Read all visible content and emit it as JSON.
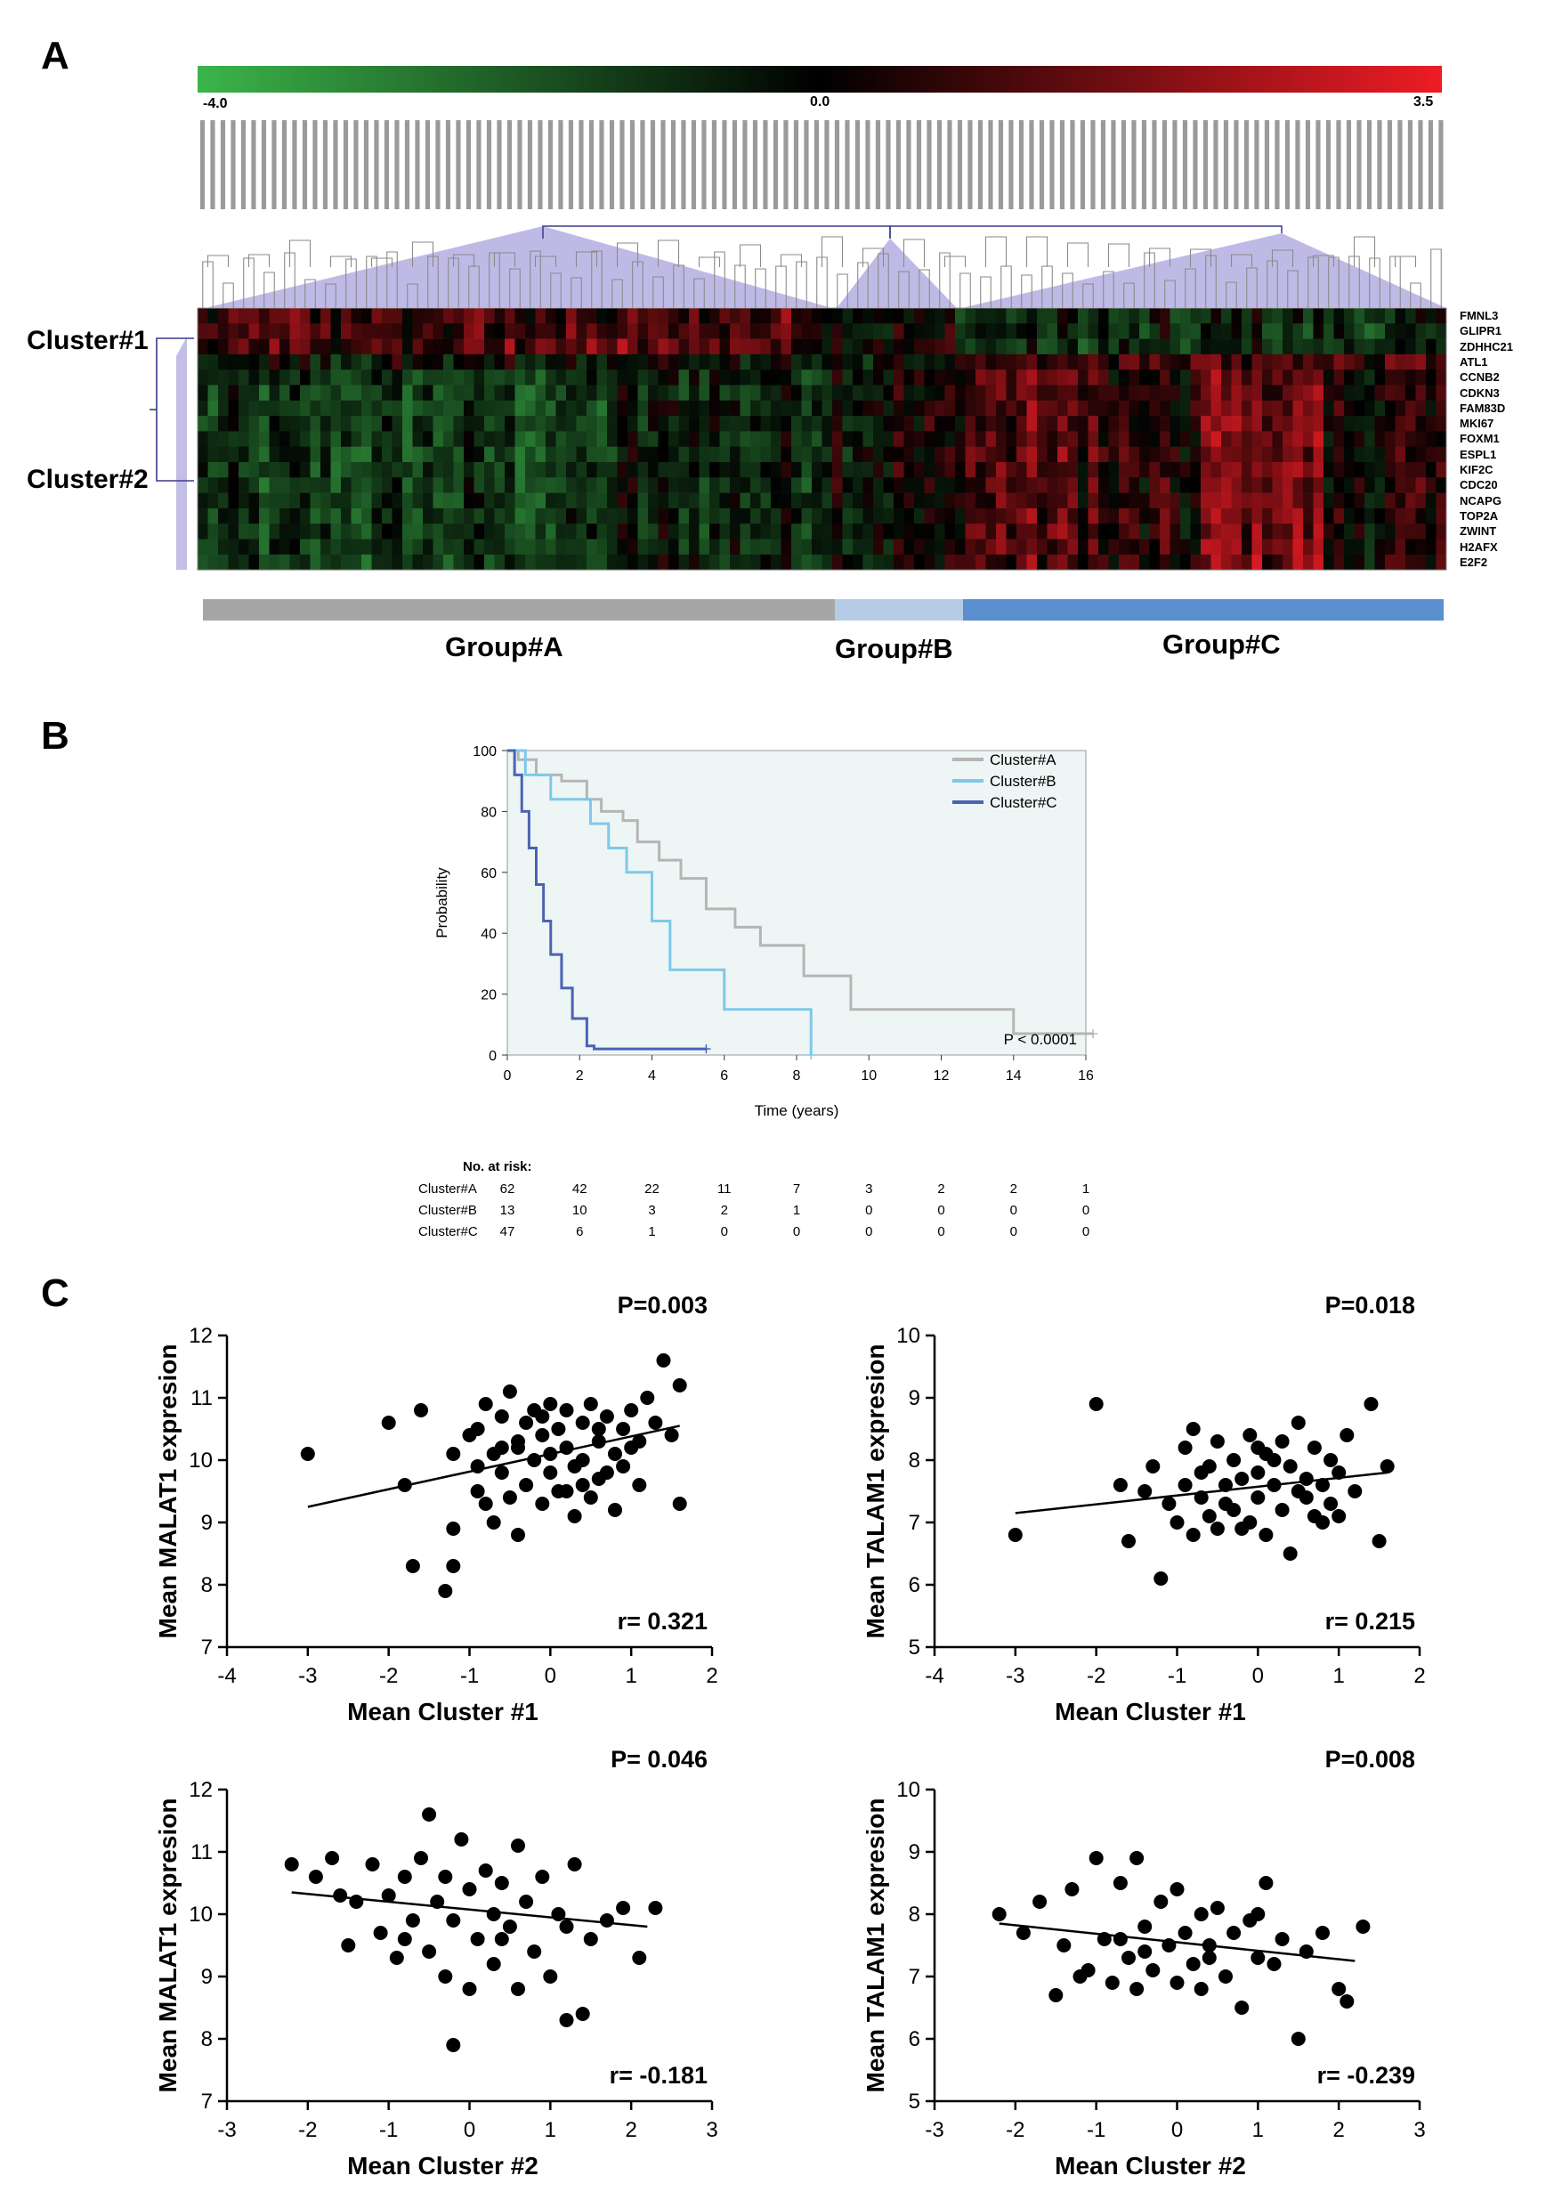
{
  "panels": {
    "a": "A",
    "b": "B",
    "c": "C"
  },
  "heatmap": {
    "color_min": "#3bb54a",
    "color_mid": "#000000",
    "color_max": "#ee1c25",
    "scale_min_label": "-4.0",
    "scale_mid_label": "0.0",
    "scale_max_label": "3.5",
    "sample_count": 122,
    "genes": [
      "FMNL3",
      "GLIPR1",
      "ZDHHC21",
      "ATL1",
      "CCNB2",
      "CDKN3",
      "FAM83D",
      "MKI67",
      "FOXM1",
      "ESPL1",
      "KIF2C",
      "CDC20",
      "NCAPG",
      "TOP2A",
      "ZWINT",
      "H2AFX",
      "E2F2"
    ],
    "cluster1_label": "Cluster#1",
    "cluster2_label": "Cluster#2",
    "groups": [
      {
        "label": "Group#A",
        "color": "#a6a6a6"
      },
      {
        "label": "Group#B",
        "color": "#b6cbe6"
      },
      {
        "label": "Group#C",
        "color": "#5b8fcf"
      }
    ]
  },
  "km": {
    "xlabel": "Time (years)",
    "ylabel": "Probability",
    "x_ticks": [
      "0",
      "2",
      "4",
      "6",
      "8",
      "10",
      "12",
      "14",
      "16"
    ],
    "y_ticks": [
      "0",
      "20",
      "40",
      "60",
      "80",
      "100"
    ],
    "pvalue": "P < 0.0001",
    "legend": [
      {
        "name": "Cluster#A",
        "color": "#b5b5b5"
      },
      {
        "name": "Cluster#B",
        "color": "#7ec8ea"
      },
      {
        "name": "Cluster#C",
        "color": "#4a64b3"
      }
    ],
    "risk_title": "No. at risk:",
    "risk_rows": [
      {
        "name": "Cluster#A",
        "values": [
          "62",
          "42",
          "22",
          "11",
          "7",
          "3",
          "2",
          "2",
          "1"
        ]
      },
      {
        "name": "Cluster#B",
        "values": [
          "13",
          "10",
          "3",
          "2",
          "1",
          "0",
          "0",
          "0",
          "0"
        ]
      },
      {
        "name": "Cluster#C",
        "values": [
          "47",
          "6",
          "1",
          "0",
          "0",
          "0",
          "0",
          "0",
          "0"
        ]
      }
    ]
  },
  "chart_data": [
    {
      "type": "line",
      "xlabel": "Time (years)",
      "ylabel": "Probability",
      "xlim": [
        0,
        16
      ],
      "ylim": [
        0,
        100
      ],
      "legend_position": "top-right",
      "series": [
        {
          "name": "Cluster#A",
          "x": [
            0,
            0.3,
            0.8,
            1.5,
            2.2,
            2.6,
            3.2,
            3.6,
            4.2,
            4.8,
            5.5,
            6.3,
            7.0,
            8.2,
            9.5,
            12.0,
            14.0,
            16.2
          ],
          "y": [
            100,
            97,
            92,
            90,
            84,
            80,
            77,
            70,
            64,
            58,
            48,
            42,
            36,
            26,
            15,
            15,
            7,
            7
          ]
        },
        {
          "name": "Cluster#B",
          "x": [
            0,
            0.5,
            1.2,
            2.3,
            2.8,
            3.3,
            4.0,
            4.5,
            6.0,
            8.4
          ],
          "y": [
            100,
            92,
            84,
            76,
            68,
            60,
            44,
            28,
            15,
            0
          ]
        },
        {
          "name": "Cluster#C",
          "x": [
            0,
            0.2,
            0.4,
            0.6,
            0.8,
            1.0,
            1.2,
            1.5,
            1.8,
            2.2,
            2.4,
            5.5
          ],
          "y": [
            100,
            92,
            80,
            68,
            56,
            44,
            33,
            22,
            12,
            3,
            2,
            2
          ]
        }
      ]
    },
    {
      "type": "scatter",
      "title": "P=0.003",
      "annotation": "r= 0.321",
      "xlabel": "Mean Cluster #1",
      "ylabel": "Mean MALAT1 expresion",
      "xlim": [
        -4,
        2
      ],
      "ylim": [
        7,
        12
      ],
      "x_ticks": [
        "-4",
        "-3",
        "-2",
        "-1",
        "0",
        "1",
        "2"
      ],
      "y_ticks": [
        "7",
        "8",
        "9",
        "10",
        "11",
        "12"
      ],
      "fit": {
        "x": [
          -3.0,
          1.6
        ],
        "y": [
          9.25,
          10.55
        ]
      },
      "points": [
        [
          -3,
          10.1
        ],
        [
          -2.0,
          10.6
        ],
        [
          -1.8,
          9.6
        ],
        [
          -1.6,
          10.8
        ],
        [
          -1.7,
          8.3
        ],
        [
          -1.3,
          7.9
        ],
        [
          -1.2,
          8.9
        ],
        [
          -1.2,
          8.3
        ],
        [
          -1.2,
          10.1
        ],
        [
          -1.0,
          10.4
        ],
        [
          -0.9,
          9.5
        ],
        [
          -0.9,
          10.5
        ],
        [
          -0.8,
          9.3
        ],
        [
          -0.8,
          10.9
        ],
        [
          -0.7,
          10.1
        ],
        [
          -0.7,
          9.0
        ],
        [
          -0.6,
          10.7
        ],
        [
          -0.6,
          9.8
        ],
        [
          -0.5,
          11.1
        ],
        [
          -0.5,
          9.4
        ],
        [
          -0.4,
          10.2
        ],
        [
          -0.4,
          8.8
        ],
        [
          -0.3,
          10.6
        ],
        [
          -0.3,
          9.6
        ],
        [
          -0.2,
          10.0
        ],
        [
          -0.2,
          10.8
        ],
        [
          -0.1,
          9.3
        ],
        [
          -0.1,
          10.4
        ],
        [
          0,
          10.1
        ],
        [
          0,
          9.8
        ],
        [
          0,
          10.9
        ],
        [
          0.1,
          10.5
        ],
        [
          0.1,
          9.5
        ],
        [
          0.2,
          10.2
        ],
        [
          0.2,
          10.8
        ],
        [
          0.3,
          9.9
        ],
        [
          0.3,
          9.1
        ],
        [
          0.4,
          10.6
        ],
        [
          0.4,
          10.0
        ],
        [
          0.5,
          9.4
        ],
        [
          0.5,
          10.9
        ],
        [
          0.6,
          10.3
        ],
        [
          0.6,
          9.7
        ],
        [
          0.7,
          10.7
        ],
        [
          0.8,
          10.1
        ],
        [
          0.8,
          9.2
        ],
        [
          0.9,
          10.5
        ],
        [
          0.9,
          9.9
        ],
        [
          1.0,
          10.8
        ],
        [
          1.0,
          10.2
        ],
        [
          1.1,
          9.6
        ],
        [
          1.2,
          11.0
        ],
        [
          1.3,
          10.6
        ],
        [
          1.4,
          11.6
        ],
        [
          1.5,
          10.4
        ],
        [
          1.6,
          11.2
        ],
        [
          1.6,
          9.3
        ],
        [
          -0.9,
          9.9
        ],
        [
          -0.4,
          10.3
        ],
        [
          0.2,
          9.5
        ],
        [
          0.6,
          10.5
        ],
        [
          1.1,
          10.3
        ],
        [
          -0.1,
          10.7
        ],
        [
          0.4,
          9.6
        ],
        [
          0.7,
          9.8
        ],
        [
          -0.6,
          10.2
        ]
      ]
    },
    {
      "type": "scatter",
      "title": "P=0.018",
      "annotation": "r= 0.215",
      "xlabel": "Mean Cluster #1",
      "ylabel": "Mean TALAM1 expresion",
      "xlim": [
        -4,
        2
      ],
      "ylim": [
        5,
        10
      ],
      "x_ticks": [
        "-4",
        "-3",
        "-2",
        "-1",
        "0",
        "1",
        "2"
      ],
      "y_ticks": [
        "5",
        "6",
        "7",
        "8",
        "9",
        "10"
      ],
      "fit": {
        "x": [
          -3.0,
          1.6
        ],
        "y": [
          7.15,
          7.8
        ]
      },
      "points": [
        [
          -3,
          6.8
        ],
        [
          -2.0,
          8.9
        ],
        [
          -1.7,
          7.6
        ],
        [
          -1.6,
          6.7
        ],
        [
          -1.4,
          7.5
        ],
        [
          -1.3,
          7.9
        ],
        [
          -1.2,
          6.1
        ],
        [
          -1.1,
          7.3
        ],
        [
          -1.0,
          7.0
        ],
        [
          -0.9,
          8.2
        ],
        [
          -0.9,
          7.6
        ],
        [
          -0.8,
          8.5
        ],
        [
          -0.8,
          6.8
        ],
        [
          -0.7,
          7.4
        ],
        [
          -0.6,
          7.9
        ],
        [
          -0.6,
          7.1
        ],
        [
          -0.5,
          8.3
        ],
        [
          -0.5,
          6.9
        ],
        [
          -0.4,
          7.6
        ],
        [
          -0.3,
          8.0
        ],
        [
          -0.3,
          7.2
        ],
        [
          -0.2,
          7.7
        ],
        [
          -0.1,
          8.4
        ],
        [
          -0.1,
          7.0
        ],
        [
          0,
          7.8
        ],
        [
          0,
          7.4
        ],
        [
          0.1,
          8.1
        ],
        [
          0.1,
          6.8
        ],
        [
          0.2,
          7.6
        ],
        [
          0.3,
          8.3
        ],
        [
          0.3,
          7.2
        ],
        [
          0.4,
          7.9
        ],
        [
          0.4,
          6.5
        ],
        [
          0.5,
          7.5
        ],
        [
          0.5,
          8.6
        ],
        [
          0.6,
          7.7
        ],
        [
          0.7,
          7.1
        ],
        [
          0.7,
          8.2
        ],
        [
          0.8,
          7.6
        ],
        [
          0.9,
          8.0
        ],
        [
          0.9,
          7.3
        ],
        [
          1.0,
          7.8
        ],
        [
          1.1,
          8.4
        ],
        [
          1.2,
          7.5
        ],
        [
          1.4,
          8.9
        ],
        [
          1.5,
          6.7
        ],
        [
          1.6,
          7.9
        ],
        [
          -0.4,
          7.3
        ],
        [
          0.2,
          8.0
        ],
        [
          0.6,
          7.4
        ],
        [
          -0.2,
          6.9
        ],
        [
          0.8,
          7.0
        ],
        [
          1.0,
          7.1
        ],
        [
          -0.7,
          7.8
        ],
        [
          0.0,
          8.2
        ]
      ]
    },
    {
      "type": "scatter",
      "title": "P= 0.046",
      "annotation": "r= -0.181",
      "xlabel": "Mean Cluster #2",
      "ylabel": "Mean MALAT1 expresion",
      "xlim": [
        -3,
        3
      ],
      "ylim": [
        7,
        12
      ],
      "x_ticks": [
        "-3",
        "-2",
        "-1",
        "0",
        "1",
        "2",
        "3"
      ],
      "y_ticks": [
        "7",
        "8",
        "9",
        "10",
        "11",
        "12"
      ],
      "fit": {
        "x": [
          -2.2,
          2.2
        ],
        "y": [
          10.35,
          9.8
        ]
      },
      "points": [
        [
          -2.2,
          10.8
        ],
        [
          -1.9,
          10.6
        ],
        [
          -1.7,
          10.9
        ],
        [
          -1.5,
          9.5
        ],
        [
          -1.4,
          10.2
        ],
        [
          -1.2,
          10.8
        ],
        [
          -1.1,
          9.7
        ],
        [
          -1.0,
          10.3
        ],
        [
          -0.9,
          9.3
        ],
        [
          -0.8,
          10.6
        ],
        [
          -0.7,
          9.9
        ],
        [
          -0.6,
          10.9
        ],
        [
          -0.5,
          11.6
        ],
        [
          -0.5,
          9.4
        ],
        [
          -0.4,
          10.2
        ],
        [
          -0.3,
          9.0
        ],
        [
          -0.3,
          10.6
        ],
        [
          -0.2,
          7.9
        ],
        [
          -0.2,
          9.9
        ],
        [
          -0.1,
          11.2
        ],
        [
          0,
          10.4
        ],
        [
          0,
          8.8
        ],
        [
          0.1,
          9.6
        ],
        [
          0.2,
          10.7
        ],
        [
          0.3,
          10.0
        ],
        [
          0.3,
          9.2
        ],
        [
          0.4,
          10.5
        ],
        [
          0.5,
          9.8
        ],
        [
          0.6,
          11.1
        ],
        [
          0.6,
          8.8
        ],
        [
          0.7,
          10.2
        ],
        [
          0.8,
          9.4
        ],
        [
          0.9,
          10.6
        ],
        [
          1.0,
          9.0
        ],
        [
          1.1,
          10.0
        ],
        [
          1.2,
          8.3
        ],
        [
          1.3,
          10.8
        ],
        [
          1.4,
          8.4
        ],
        [
          1.5,
          9.6
        ],
        [
          1.7,
          9.9
        ],
        [
          1.9,
          10.1
        ],
        [
          2.1,
          9.3
        ],
        [
          2.3,
          10.1
        ],
        [
          -1.6,
          10.3
        ],
        [
          -0.8,
          9.6
        ],
        [
          0.4,
          9.6
        ],
        [
          1.2,
          9.8
        ]
      ]
    },
    {
      "type": "scatter",
      "title": "P=0.008",
      "annotation": "r= -0.239",
      "xlabel": "Mean Cluster #2",
      "ylabel": "Mean TALAM1 expresion",
      "xlim": [
        -3,
        3
      ],
      "ylim": [
        5,
        10
      ],
      "x_ticks": [
        "-3",
        "-2",
        "-1",
        "0",
        "1",
        "2",
        "3"
      ],
      "y_ticks": [
        "5",
        "6",
        "7",
        "8",
        "9",
        "10"
      ],
      "fit": {
        "x": [
          -2.2,
          2.2
        ],
        "y": [
          7.85,
          7.25
        ]
      },
      "points": [
        [
          -2.2,
          8.0
        ],
        [
          -1.9,
          7.7
        ],
        [
          -1.7,
          8.2
        ],
        [
          -1.5,
          6.7
        ],
        [
          -1.4,
          7.5
        ],
        [
          -1.3,
          8.4
        ],
        [
          -1.1,
          7.1
        ],
        [
          -1.0,
          8.9
        ],
        [
          -0.9,
          7.6
        ],
        [
          -0.8,
          6.9
        ],
        [
          -0.7,
          8.5
        ],
        [
          -0.6,
          7.3
        ],
        [
          -0.5,
          8.9
        ],
        [
          -0.5,
          6.8
        ],
        [
          -0.4,
          7.8
        ],
        [
          -0.3,
          7.1
        ],
        [
          -0.2,
          8.2
        ],
        [
          -0.1,
          7.5
        ],
        [
          0,
          8.4
        ],
        [
          0,
          6.9
        ],
        [
          0.1,
          7.7
        ],
        [
          0.2,
          7.2
        ],
        [
          0.3,
          8.0
        ],
        [
          0.3,
          6.8
        ],
        [
          0.4,
          7.5
        ],
        [
          0.5,
          8.1
        ],
        [
          0.6,
          7.0
        ],
        [
          0.7,
          7.7
        ],
        [
          0.8,
          6.5
        ],
        [
          0.9,
          7.9
        ],
        [
          1.0,
          7.3
        ],
        [
          1.1,
          8.5
        ],
        [
          1.2,
          7.2
        ],
        [
          1.3,
          7.6
        ],
        [
          1.5,
          6.0
        ],
        [
          1.6,
          7.4
        ],
        [
          1.8,
          7.7
        ],
        [
          2.0,
          6.8
        ],
        [
          2.1,
          6.6
        ],
        [
          2.3,
          7.8
        ],
        [
          -1.2,
          7.0
        ],
        [
          -0.4,
          7.4
        ],
        [
          0.4,
          7.3
        ],
        [
          1.0,
          8.0
        ],
        [
          -0.7,
          7.6
        ]
      ]
    }
  ]
}
